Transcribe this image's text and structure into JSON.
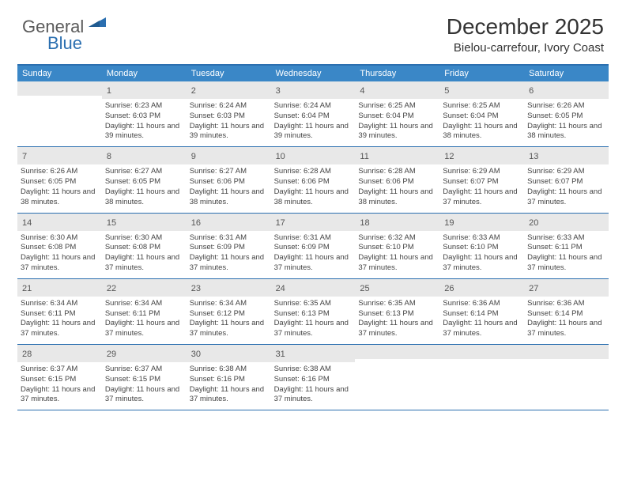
{
  "logo": {
    "text_gray": "General",
    "text_blue": "Blue",
    "shape_color": "#2b6fb0"
  },
  "header": {
    "month_title": "December 2025",
    "location": "Bielou-carrefour, Ivory Coast"
  },
  "colors": {
    "header_bg": "#3a87c7",
    "border": "#2b6fb0",
    "daynum_bg": "#e8e8e8",
    "text": "#444444"
  },
  "weekdays": [
    "Sunday",
    "Monday",
    "Tuesday",
    "Wednesday",
    "Thursday",
    "Friday",
    "Saturday"
  ],
  "weeks": [
    [
      {
        "num": "",
        "sunrise": "",
        "sunset": "",
        "daylight": ""
      },
      {
        "num": "1",
        "sunrise": "Sunrise: 6:23 AM",
        "sunset": "Sunset: 6:03 PM",
        "daylight": "Daylight: 11 hours and 39 minutes."
      },
      {
        "num": "2",
        "sunrise": "Sunrise: 6:24 AM",
        "sunset": "Sunset: 6:03 PM",
        "daylight": "Daylight: 11 hours and 39 minutes."
      },
      {
        "num": "3",
        "sunrise": "Sunrise: 6:24 AM",
        "sunset": "Sunset: 6:04 PM",
        "daylight": "Daylight: 11 hours and 39 minutes."
      },
      {
        "num": "4",
        "sunrise": "Sunrise: 6:25 AM",
        "sunset": "Sunset: 6:04 PM",
        "daylight": "Daylight: 11 hours and 39 minutes."
      },
      {
        "num": "5",
        "sunrise": "Sunrise: 6:25 AM",
        "sunset": "Sunset: 6:04 PM",
        "daylight": "Daylight: 11 hours and 38 minutes."
      },
      {
        "num": "6",
        "sunrise": "Sunrise: 6:26 AM",
        "sunset": "Sunset: 6:05 PM",
        "daylight": "Daylight: 11 hours and 38 minutes."
      }
    ],
    [
      {
        "num": "7",
        "sunrise": "Sunrise: 6:26 AM",
        "sunset": "Sunset: 6:05 PM",
        "daylight": "Daylight: 11 hours and 38 minutes."
      },
      {
        "num": "8",
        "sunrise": "Sunrise: 6:27 AM",
        "sunset": "Sunset: 6:05 PM",
        "daylight": "Daylight: 11 hours and 38 minutes."
      },
      {
        "num": "9",
        "sunrise": "Sunrise: 6:27 AM",
        "sunset": "Sunset: 6:06 PM",
        "daylight": "Daylight: 11 hours and 38 minutes."
      },
      {
        "num": "10",
        "sunrise": "Sunrise: 6:28 AM",
        "sunset": "Sunset: 6:06 PM",
        "daylight": "Daylight: 11 hours and 38 minutes."
      },
      {
        "num": "11",
        "sunrise": "Sunrise: 6:28 AM",
        "sunset": "Sunset: 6:06 PM",
        "daylight": "Daylight: 11 hours and 38 minutes."
      },
      {
        "num": "12",
        "sunrise": "Sunrise: 6:29 AM",
        "sunset": "Sunset: 6:07 PM",
        "daylight": "Daylight: 11 hours and 37 minutes."
      },
      {
        "num": "13",
        "sunrise": "Sunrise: 6:29 AM",
        "sunset": "Sunset: 6:07 PM",
        "daylight": "Daylight: 11 hours and 37 minutes."
      }
    ],
    [
      {
        "num": "14",
        "sunrise": "Sunrise: 6:30 AM",
        "sunset": "Sunset: 6:08 PM",
        "daylight": "Daylight: 11 hours and 37 minutes."
      },
      {
        "num": "15",
        "sunrise": "Sunrise: 6:30 AM",
        "sunset": "Sunset: 6:08 PM",
        "daylight": "Daylight: 11 hours and 37 minutes."
      },
      {
        "num": "16",
        "sunrise": "Sunrise: 6:31 AM",
        "sunset": "Sunset: 6:09 PM",
        "daylight": "Daylight: 11 hours and 37 minutes."
      },
      {
        "num": "17",
        "sunrise": "Sunrise: 6:31 AM",
        "sunset": "Sunset: 6:09 PM",
        "daylight": "Daylight: 11 hours and 37 minutes."
      },
      {
        "num": "18",
        "sunrise": "Sunrise: 6:32 AM",
        "sunset": "Sunset: 6:10 PM",
        "daylight": "Daylight: 11 hours and 37 minutes."
      },
      {
        "num": "19",
        "sunrise": "Sunrise: 6:33 AM",
        "sunset": "Sunset: 6:10 PM",
        "daylight": "Daylight: 11 hours and 37 minutes."
      },
      {
        "num": "20",
        "sunrise": "Sunrise: 6:33 AM",
        "sunset": "Sunset: 6:11 PM",
        "daylight": "Daylight: 11 hours and 37 minutes."
      }
    ],
    [
      {
        "num": "21",
        "sunrise": "Sunrise: 6:34 AM",
        "sunset": "Sunset: 6:11 PM",
        "daylight": "Daylight: 11 hours and 37 minutes."
      },
      {
        "num": "22",
        "sunrise": "Sunrise: 6:34 AM",
        "sunset": "Sunset: 6:11 PM",
        "daylight": "Daylight: 11 hours and 37 minutes."
      },
      {
        "num": "23",
        "sunrise": "Sunrise: 6:34 AM",
        "sunset": "Sunset: 6:12 PM",
        "daylight": "Daylight: 11 hours and 37 minutes."
      },
      {
        "num": "24",
        "sunrise": "Sunrise: 6:35 AM",
        "sunset": "Sunset: 6:13 PM",
        "daylight": "Daylight: 11 hours and 37 minutes."
      },
      {
        "num": "25",
        "sunrise": "Sunrise: 6:35 AM",
        "sunset": "Sunset: 6:13 PM",
        "daylight": "Daylight: 11 hours and 37 minutes."
      },
      {
        "num": "26",
        "sunrise": "Sunrise: 6:36 AM",
        "sunset": "Sunset: 6:14 PM",
        "daylight": "Daylight: 11 hours and 37 minutes."
      },
      {
        "num": "27",
        "sunrise": "Sunrise: 6:36 AM",
        "sunset": "Sunset: 6:14 PM",
        "daylight": "Daylight: 11 hours and 37 minutes."
      }
    ],
    [
      {
        "num": "28",
        "sunrise": "Sunrise: 6:37 AM",
        "sunset": "Sunset: 6:15 PM",
        "daylight": "Daylight: 11 hours and 37 minutes."
      },
      {
        "num": "29",
        "sunrise": "Sunrise: 6:37 AM",
        "sunset": "Sunset: 6:15 PM",
        "daylight": "Daylight: 11 hours and 37 minutes."
      },
      {
        "num": "30",
        "sunrise": "Sunrise: 6:38 AM",
        "sunset": "Sunset: 6:16 PM",
        "daylight": "Daylight: 11 hours and 37 minutes."
      },
      {
        "num": "31",
        "sunrise": "Sunrise: 6:38 AM",
        "sunset": "Sunset: 6:16 PM",
        "daylight": "Daylight: 11 hours and 37 minutes."
      },
      {
        "num": "",
        "sunrise": "",
        "sunset": "",
        "daylight": ""
      },
      {
        "num": "",
        "sunrise": "",
        "sunset": "",
        "daylight": ""
      },
      {
        "num": "",
        "sunrise": "",
        "sunset": "",
        "daylight": ""
      }
    ]
  ]
}
